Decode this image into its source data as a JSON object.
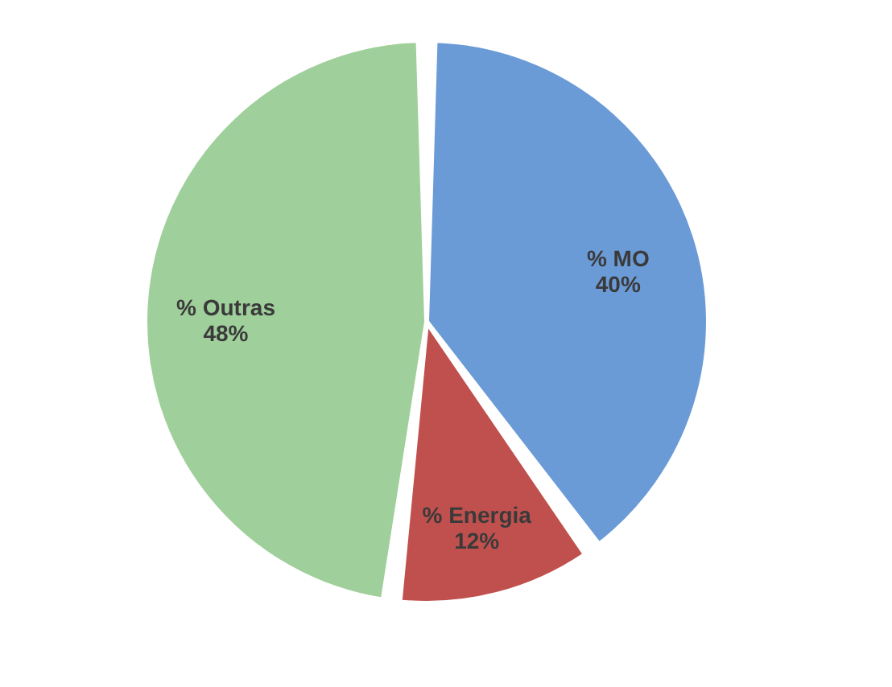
{
  "chart_data": {
    "type": "pie",
    "categories": [
      "% MO",
      "% Energia",
      "% Outras"
    ],
    "values": [
      40,
      12,
      48
    ],
    "value_labels": [
      "40%",
      "12%",
      "48%"
    ],
    "colors": [
      "#6b9bd6",
      "#c0504d",
      "#9fcf9a"
    ],
    "legend": false
  }
}
